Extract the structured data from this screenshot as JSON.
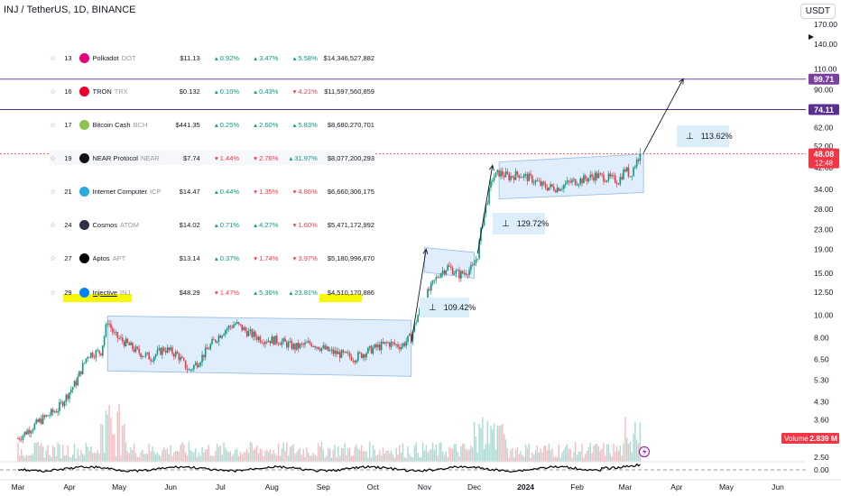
{
  "header": {
    "symbol_line": "INJ / TetherUS, 1D, BINANCE"
  },
  "currency": "USDT",
  "price_axis": {
    "ticks": [
      "170.00",
      "140.00",
      "110.00",
      "90.00",
      "62.00",
      "52.00",
      "42.00",
      "34.00",
      "28.00",
      "23.00",
      "19.00",
      "15.00",
      "12.50",
      "10.00",
      "8.00",
      "6.50",
      "5.30",
      "4.30",
      "3.60",
      "2.50"
    ],
    "tick_values": [
      170,
      140,
      110,
      90,
      62,
      52,
      42,
      34,
      28,
      23,
      19,
      15,
      12.5,
      10,
      8,
      6.5,
      5.3,
      4.3,
      3.6,
      2.5
    ],
    "levels": [
      {
        "value": 99.71,
        "label": "99.71",
        "color": "#7b3fa0",
        "text_color": "#ffffff"
      },
      {
        "value": 74.11,
        "label": "74.11",
        "color": "#5b2e91",
        "text_color": "#ffffff"
      }
    ],
    "current": {
      "value": 48.08,
      "label": "48.08",
      "countdown": "12:48",
      "color": "#f23645"
    },
    "volume_badge": {
      "label": "Volume",
      "value": "2.839 M"
    },
    "indicator_zero": "0.00"
  },
  "time_axis": {
    "labels": [
      "Mar",
      "Apr",
      "May",
      "Jun",
      "Jul",
      "Aug",
      "Sep",
      "Oct",
      "Nov",
      "Dec",
      "2024",
      "Feb",
      "Mar",
      "Apr",
      "May",
      "Jun"
    ]
  },
  "coin_table": [
    {
      "rank": "13",
      "name": "Polkadot",
      "ticker": "DOT",
      "price": "$11.13",
      "h1": "0.92%",
      "h1_dir": "up",
      "h24": "3.47%",
      "h24_dir": "up",
      "d7": "5.58%",
      "d7_dir": "up",
      "cap": "$14,346,527,882",
      "logo_color": "#e6007a"
    },
    {
      "rank": "16",
      "name": "TRON",
      "ticker": "TRX",
      "price": "$0.132",
      "h1": "0.10%",
      "h1_dir": "up",
      "h24": "0.43%",
      "h24_dir": "up",
      "d7": "4.21%",
      "d7_dir": "dn",
      "cap": "$11,597,560,859",
      "logo_color": "#eb0029"
    },
    {
      "rank": "17",
      "name": "Bitcoin Cash",
      "ticker": "BCH",
      "price": "$441.35",
      "h1": "0.25%",
      "h1_dir": "up",
      "h24": "2.60%",
      "h24_dir": "up",
      "d7": "5.83%",
      "d7_dir": "up",
      "cap": "$8,680,270,701",
      "logo_color": "#8dc351"
    },
    {
      "rank": "19",
      "name": "NEAR Protocol",
      "ticker": "NEAR",
      "price": "$7.74",
      "h1": "1.44%",
      "h1_dir": "dn",
      "h24": "2.76%",
      "h24_dir": "dn",
      "d7": "31.97%",
      "d7_dir": "up",
      "cap": "$8,077,200,293",
      "logo_color": "#111111"
    },
    {
      "rank": "21",
      "name": "Internet Computer",
      "ticker": "ICP",
      "price": "$14.47",
      "h1": "0.44%",
      "h1_dir": "up",
      "h24": "1.35%",
      "h24_dir": "dn",
      "d7": "4.86%",
      "d7_dir": "dn",
      "cap": "$6,660,306,175",
      "logo_color": "#29abe2"
    },
    {
      "rank": "24",
      "name": "Cosmos",
      "ticker": "ATOM",
      "price": "$14.02",
      "h1": "0.71%",
      "h1_dir": "up",
      "h24": "4.27%",
      "h24_dir": "up",
      "d7": "1.60%",
      "d7_dir": "dn",
      "cap": "$5,471,172,992",
      "logo_color": "#2e3148"
    },
    {
      "rank": "27",
      "name": "Aptos",
      "ticker": "APT",
      "price": "$13.14",
      "h1": "0.37%",
      "h1_dir": "up",
      "h24": "1.74%",
      "h24_dir": "dn",
      "d7": "3.97%",
      "d7_dir": "dn",
      "cap": "$5,180,996,670",
      "logo_color": "#000000"
    },
    {
      "rank": "29",
      "name": "Injective",
      "ticker": "INJ",
      "price": "$48.29",
      "h1": "1.47%",
      "h1_dir": "dn",
      "h24": "5.36%",
      "h24_dir": "up",
      "d7": "23.81%",
      "d7_dir": "up",
      "cap": "$4,510,170,886",
      "logo_color": "#0082fa"
    }
  ],
  "annotations": [
    {
      "label": "109.42%"
    },
    {
      "label": "129.72%"
    },
    {
      "label": "113.62%"
    }
  ],
  "chart_data": {
    "type": "candlestick",
    "symbol": "INJ / TetherUS",
    "interval": "1D",
    "exchange": "BINANCE",
    "y_scale": "log",
    "ylim": [
      2.3,
      200
    ],
    "xlim": [
      "2023-03",
      "2024-06"
    ],
    "x_ticks": [
      "Mar",
      "Apr",
      "May",
      "Jun",
      "Jul",
      "Aug",
      "Sep",
      "Oct",
      "Nov",
      "Dec",
      "2024",
      "Feb",
      "Mar",
      "Apr",
      "May",
      "Jun"
    ],
    "close_path": [
      [
        "2023-03-01",
        3.0
      ],
      [
        "2023-03-15",
        3.6
      ],
      [
        "2023-03-25",
        4.0
      ],
      [
        "2023-04-05",
        5.2
      ],
      [
        "2023-04-12",
        6.8
      ],
      [
        "2023-04-20",
        7.0
      ],
      [
        "2023-04-24",
        9.5
      ],
      [
        "2023-04-28",
        8.2
      ],
      [
        "2023-05-05",
        7.6
      ],
      [
        "2023-05-12",
        7.0
      ],
      [
        "2023-05-20",
        6.6
      ],
      [
        "2023-05-28",
        7.2
      ],
      [
        "2023-06-05",
        6.8
      ],
      [
        "2023-06-12",
        5.8
      ],
      [
        "2023-06-18",
        6.4
      ],
      [
        "2023-06-26",
        7.6
      ],
      [
        "2023-07-03",
        8.6
      ],
      [
        "2023-07-10",
        9.2
      ],
      [
        "2023-07-18",
        8.4
      ],
      [
        "2023-07-26",
        7.9
      ],
      [
        "2023-08-05",
        7.8
      ],
      [
        "2023-08-15",
        7.3
      ],
      [
        "2023-08-25",
        7.6
      ],
      [
        "2023-09-05",
        7.0
      ],
      [
        "2023-09-12",
        6.8
      ],
      [
        "2023-09-20",
        6.6
      ],
      [
        "2023-10-01",
        7.2
      ],
      [
        "2023-10-10",
        7.6
      ],
      [
        "2023-10-18",
        7.4
      ],
      [
        "2023-10-24",
        8.1
      ],
      [
        "2023-10-28",
        10.0
      ],
      [
        "2023-11-02",
        12.0
      ],
      [
        "2023-11-06",
        13.5
      ],
      [
        "2023-11-10",
        15.0
      ],
      [
        "2023-11-15",
        16.0
      ],
      [
        "2023-11-22",
        14.8
      ],
      [
        "2023-11-30",
        15.8
      ],
      [
        "2023-12-03",
        18.0
      ],
      [
        "2023-12-06",
        25.0
      ],
      [
        "2023-12-09",
        31.0
      ],
      [
        "2023-12-12",
        38.0
      ],
      [
        "2023-12-16",
        40.0
      ],
      [
        "2023-12-22",
        38.5
      ],
      [
        "2023-12-28",
        39.5
      ],
      [
        "2024-01-05",
        37.5
      ],
      [
        "2024-01-12",
        35.0
      ],
      [
        "2024-01-20",
        34.5
      ],
      [
        "2024-01-28",
        36.5
      ],
      [
        "2024-02-05",
        37.5
      ],
      [
        "2024-02-12",
        39.0
      ],
      [
        "2024-02-20",
        38.0
      ],
      [
        "2024-02-26",
        37.0
      ],
      [
        "2024-03-01",
        41.5
      ],
      [
        "2024-03-04",
        39.0
      ],
      [
        "2024-03-07",
        43.5
      ],
      [
        "2024-03-10",
        48.08
      ]
    ],
    "horizontal_levels": [
      99.71,
      74.11
    ],
    "measure_annotations": [
      "109.42%",
      "129.72%",
      "113.62%"
    ],
    "volume_last": "2.839 M"
  }
}
